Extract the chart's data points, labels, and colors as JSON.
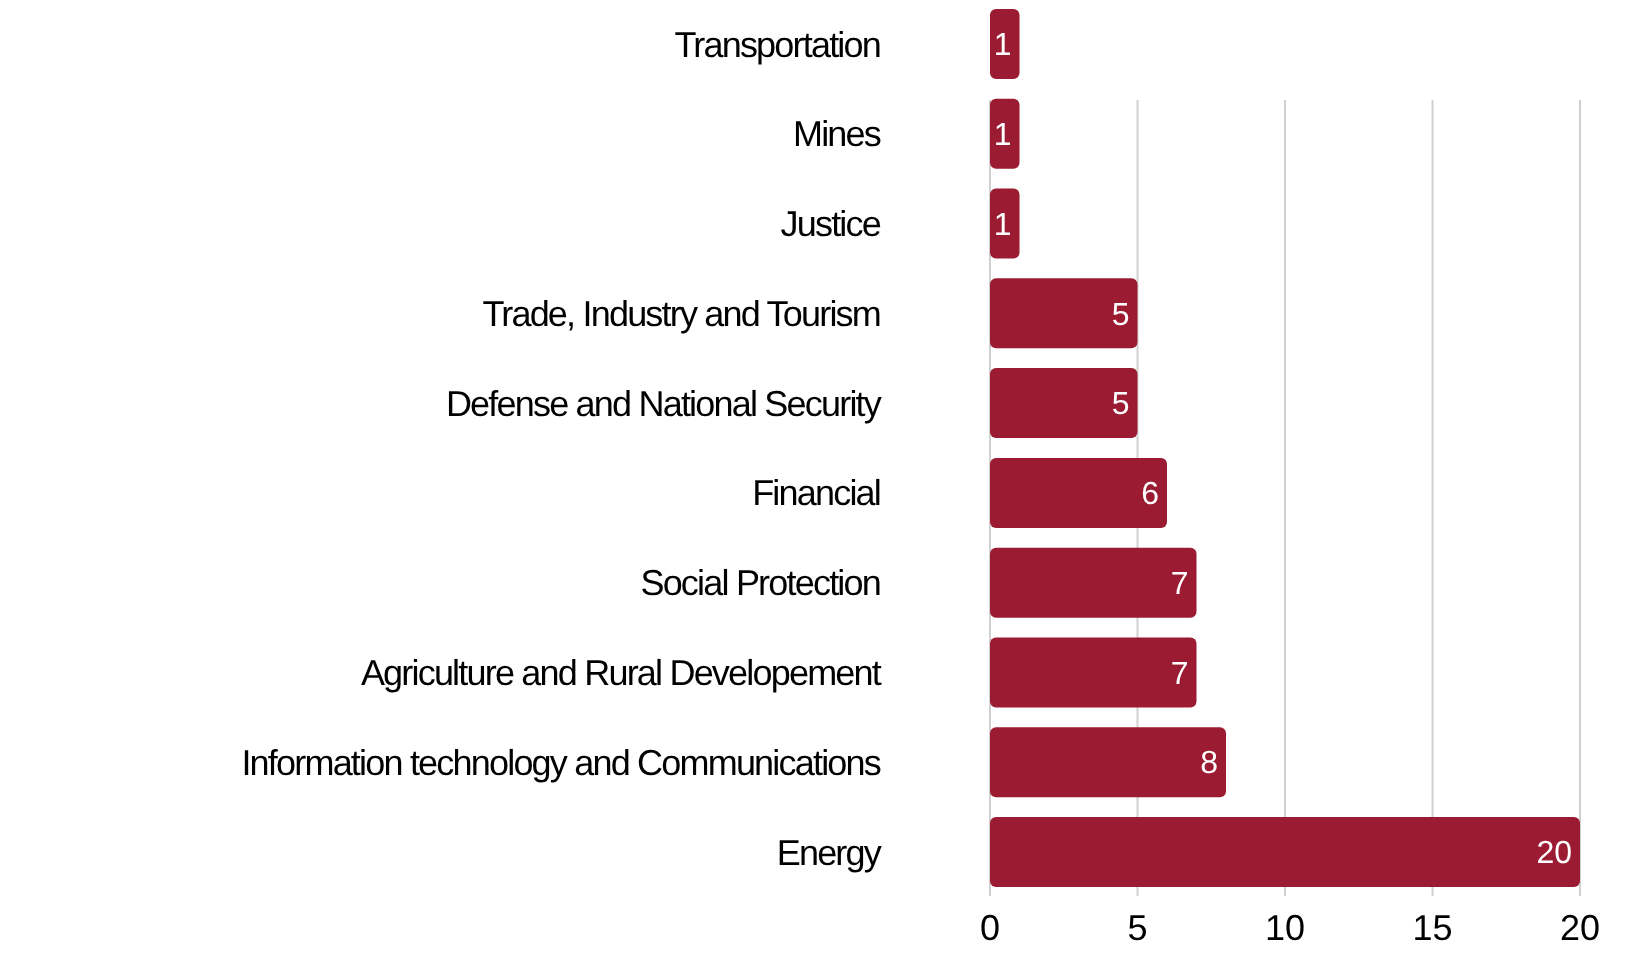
{
  "chart_data": {
    "type": "bar",
    "orientation": "horizontal",
    "categories": [
      "Transportation",
      "Mines",
      "Justice",
      "Trade, Industry and Tourism",
      "Defense and National Security",
      "Financial",
      "Social Protection",
      "Agriculture and Rural Developement",
      "Information technology and Communications",
      "Energy"
    ],
    "values": [
      1,
      1,
      1,
      5,
      5,
      6,
      7,
      7,
      8,
      20
    ],
    "color": "#9b1b32",
    "xlim": [
      0,
      20
    ],
    "xticks": [
      0,
      5,
      10,
      15,
      20
    ],
    "grid": "x",
    "data_labels": true
  }
}
